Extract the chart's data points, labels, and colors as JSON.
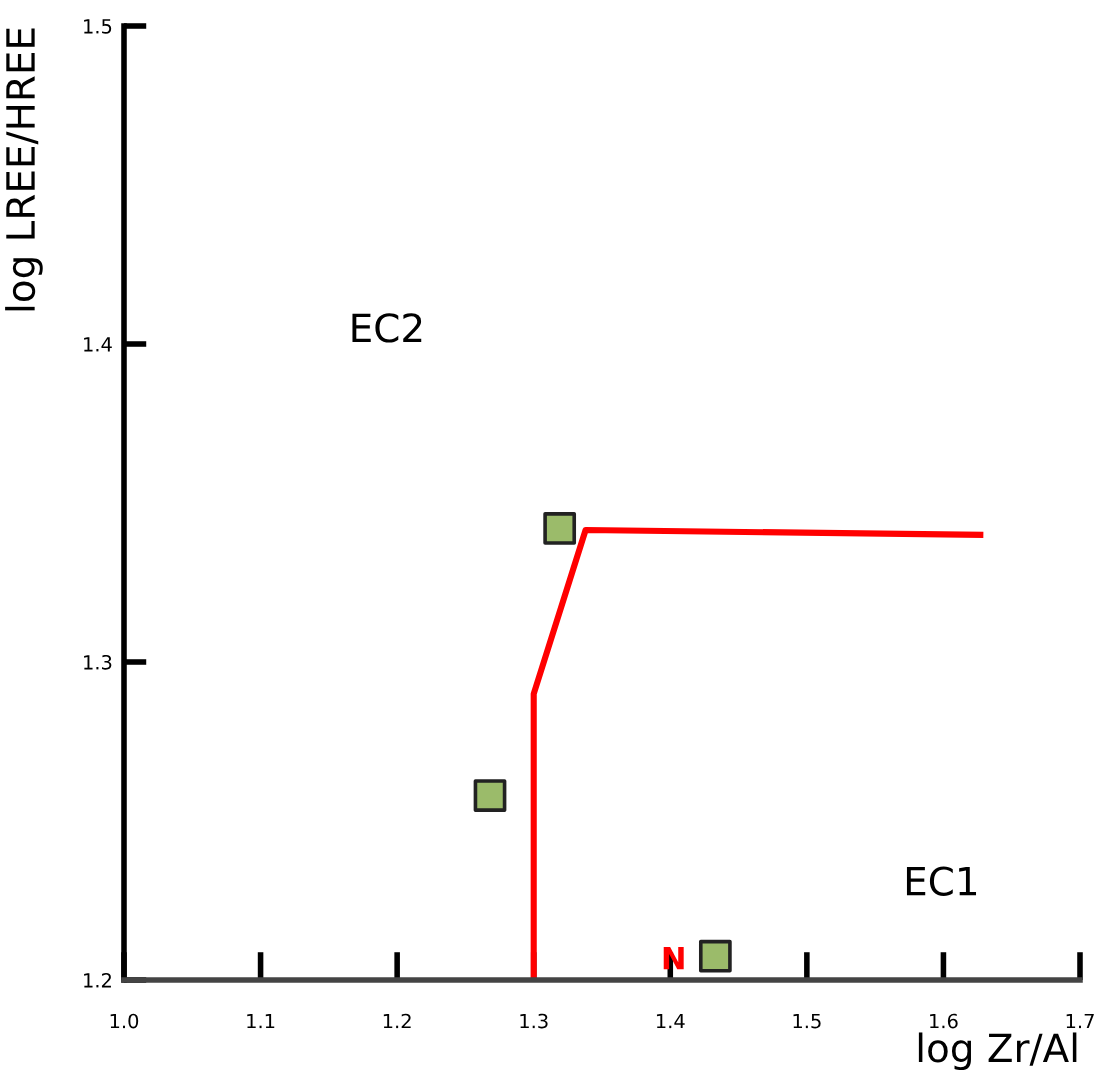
{
  "chart_data": {
    "type": "scatter",
    "xlabel": "log Zr/Al",
    "ylabel": "log LREE/HREE",
    "xlim": [
      1.0,
      1.7
    ],
    "ylim": [
      1.2,
      1.5
    ],
    "xticks": [
      {
        "value": 1.0,
        "label": "1.0"
      },
      1.1,
      1.2,
      1.3,
      1.4,
      1.5,
      1.6,
      1.7
    ],
    "yticks": [
      1.2,
      1.3,
      1.4,
      1.5
    ],
    "grid": false,
    "legend": false,
    "series": [
      {
        "type": "line",
        "color": "#ff0000",
        "x": [
          1.3,
          1.3,
          1.338,
          1.627
        ],
        "values": [
          1.2,
          1.29,
          1.3415,
          1.34
        ]
      },
      {
        "color": "#9bbb6a",
        "marker": "square",
        "x": [
          1.319,
          1.268,
          1.433
        ],
        "values": [
          1.342,
          1.258,
          1.2075
        ]
      }
    ],
    "annotations": [
      "EC2",
      "EC1",
      "N"
    ]
  }
}
